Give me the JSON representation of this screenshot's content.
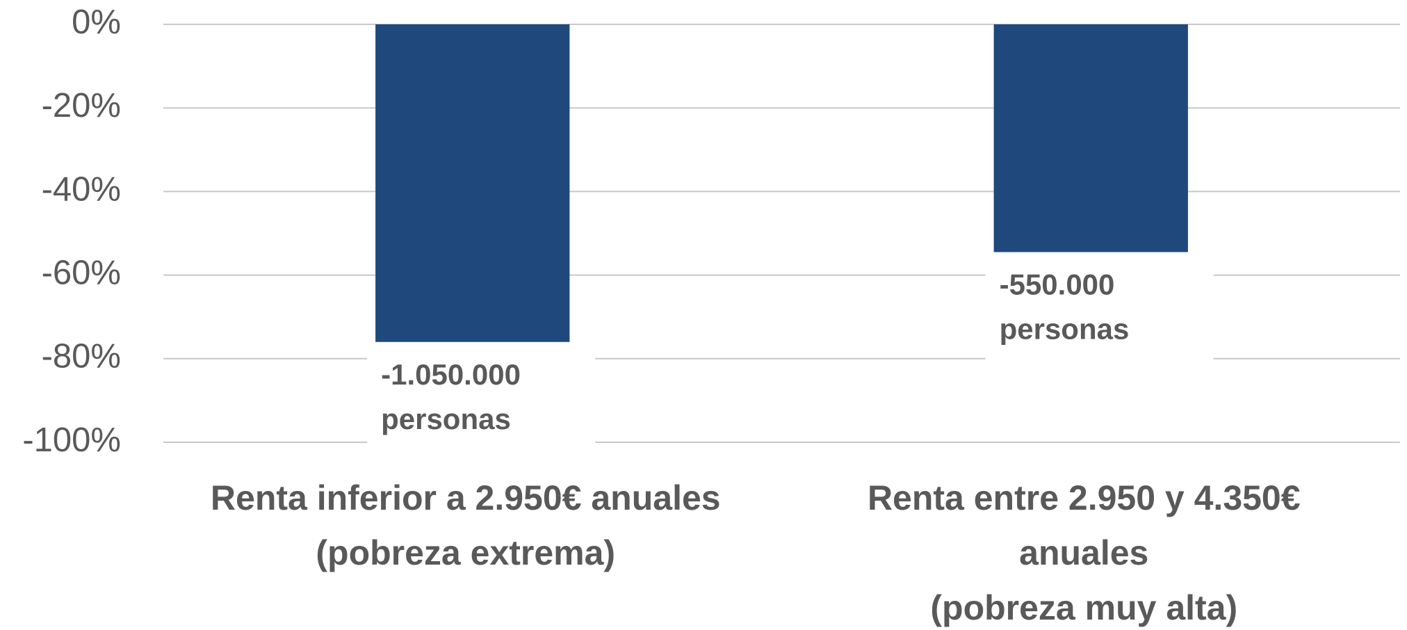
{
  "chart_data": {
    "type": "bar",
    "categories": [
      [
        "Renta inferior a 2.950€ anuales",
        "(pobreza extrema)"
      ],
      [
        "Renta entre 2.950 y 4.350€",
        "anuales",
        "(pobreza muy alta)"
      ]
    ],
    "values": [
      -76,
      -54.5
    ],
    "color": "#1f497d",
    "annotations": [
      [
        "-1.050.000",
        "personas"
      ],
      [
        "-550.000",
        "personas"
      ]
    ],
    "ylim": [
      -100,
      0
    ],
    "yticks": [
      {
        "value": 0,
        "label": "0%"
      },
      {
        "value": -20,
        "label": "-20%"
      },
      {
        "value": -40,
        "label": "-40%"
      },
      {
        "value": -60,
        "label": "-60%"
      },
      {
        "value": -80,
        "label": "-80%"
      },
      {
        "value": -100,
        "label": "-100%"
      }
    ],
    "grid": true
  }
}
